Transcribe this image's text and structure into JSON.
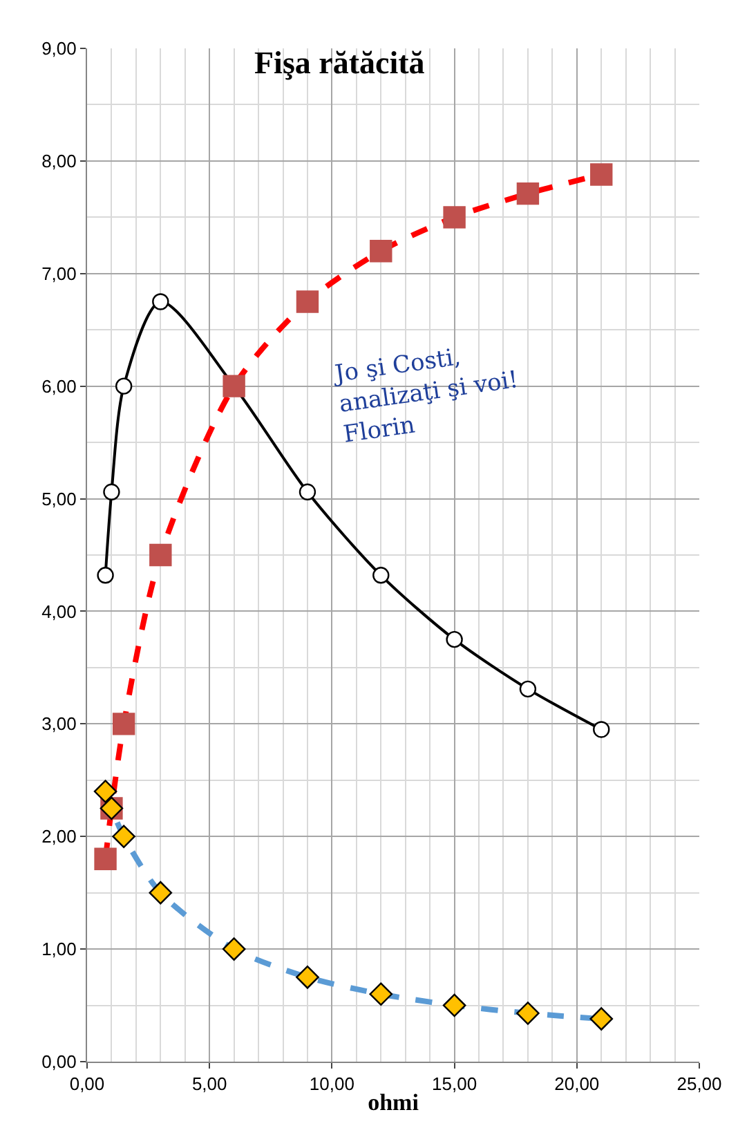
{
  "chart_data": {
    "type": "line",
    "title": "Fişa rătăcită",
    "xlabel": "ohmi",
    "annotations": [
      "Jo şi Costi,\nanalizaţi şi voi!\nFlorin"
    ],
    "x": [
      0.75,
      1,
      1.5,
      3,
      6,
      9,
      12,
      15,
      18,
      21
    ],
    "series": [
      {
        "color": "#000000",
        "colors": [
          "#ffffff",
          "#ffffff",
          "#ffffff",
          "#ffffff",
          "#ffffff",
          "#ffffff",
          "#ffffff",
          "#ffffff",
          "#ffffff",
          "#ffffff"
        ],
        "marker": "circle",
        "line_style": "solid",
        "values": [
          4.32,
          5.06,
          6.0,
          6.75,
          6.0,
          5.06,
          4.32,
          3.75,
          3.31,
          2.95
        ]
      },
      {
        "color": "#ff0000",
        "colors": [
          "#c0504d",
          "#c0504d",
          "#c0504d",
          "#c0504d",
          "#c0504d",
          "#c0504d",
          "#c0504d",
          "#c0504d",
          "#c0504d",
          "#c0504d"
        ],
        "marker": "square",
        "line_style": "dashed",
        "values": [
          1.8,
          2.25,
          3.0,
          4.5,
          6.0,
          6.75,
          7.2,
          7.5,
          7.71,
          7.88
        ]
      },
      {
        "color": "#5b9bd5",
        "colors": [
          "#ffc000",
          "#ffc000",
          "#ffc000",
          "#ffc000",
          "#ffc000",
          "#ffc000",
          "#ffc000",
          "#ffc000",
          "#ffc000",
          "#ffc000"
        ],
        "marker": "diamond",
        "line_style": "dashed",
        "values": [
          2.4,
          2.25,
          2.0,
          1.5,
          1.0,
          0.75,
          0.6,
          0.5,
          0.43,
          0.38
        ]
      }
    ],
    "xlim": [
      0,
      25
    ],
    "xticks": [
      {
        "value": 0,
        "label": "0,00"
      },
      {
        "value": 5,
        "label": "5,00"
      },
      {
        "value": 10,
        "label": "10,00"
      },
      {
        "value": 15,
        "label": "15,00"
      },
      {
        "value": 20,
        "label": "20,00"
      },
      {
        "value": 25,
        "label": "25,00"
      }
    ],
    "ylim": [
      0,
      9
    ],
    "yticks": [
      {
        "value": 0,
        "label": "0,00"
      },
      {
        "value": 1,
        "label": "1,00"
      },
      {
        "value": 2,
        "label": "2,00"
      },
      {
        "value": 3,
        "label": "3,00"
      },
      {
        "value": 4,
        "label": "4,00"
      },
      {
        "value": 5,
        "label": "5,00"
      },
      {
        "value": 6,
        "label": "6,00"
      },
      {
        "value": 7,
        "label": "7,00"
      },
      {
        "value": 8,
        "label": "8,00"
      },
      {
        "value": 9,
        "label": "9,00"
      }
    ],
    "grid": true
  }
}
